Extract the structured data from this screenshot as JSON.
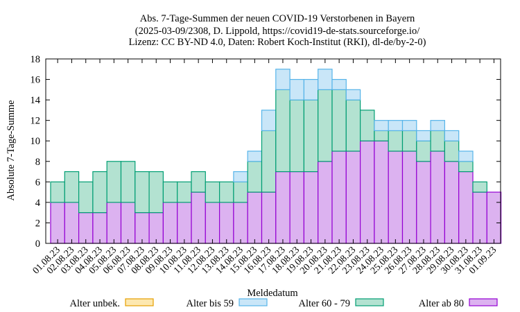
{
  "chart_data": {
    "type": "bar",
    "stacked": true,
    "title_lines": [
      "Abs. 7-Tage-Summen der neuen COVID-19 Verstorbenen in Bayern",
      "(2025-03-09/2308, D. Lippold, https://covid19-de-stats.sourceforge.io/",
      "Lizenz: CC BY-ND 4.0, Daten: Robert Koch-Institut (RKI), dl-de/by-2-0)"
    ],
    "xlabel": "Meldedatum",
    "ylabel": "Absolute 7-Tage-Summe",
    "ylim": [
      0,
      18
    ],
    "yticks": [
      0,
      2,
      4,
      6,
      8,
      10,
      12,
      14,
      16,
      18
    ],
    "grid": false,
    "legend_position": "bottom",
    "categories": [
      "01.08.23",
      "02.08.23",
      "03.08.23",
      "04.08.23",
      "05.08.23",
      "06.08.23",
      "07.08.23",
      "08.08.23",
      "09.08.23",
      "10.08.23",
      "11.08.23",
      "12.08.23",
      "13.08.23",
      "14.08.23",
      "15.08.23",
      "16.08.23",
      "17.08.23",
      "18.08.23",
      "19.08.23",
      "20.08.23",
      "21.08.23",
      "22.08.23",
      "23.08.23",
      "24.08.23",
      "25.08.23",
      "26.08.23",
      "27.08.23",
      "28.08.23",
      "29.08.23",
      "30.08.23",
      "31.08.23",
      "01.09.23"
    ],
    "series": [
      {
        "name": "Alter ab 80",
        "fill": "#dcb2f0",
        "stroke": "#9400d3",
        "values": [
          4,
          4,
          3,
          3,
          4,
          4,
          3,
          3,
          4,
          4,
          5,
          4,
          4,
          4,
          5,
          5,
          7,
          7,
          7,
          8,
          9,
          9,
          10,
          10,
          9,
          9,
          8,
          9,
          8,
          7,
          5,
          5
        ]
      },
      {
        "name": "Alter 60 - 79",
        "fill": "#b3e2d1",
        "stroke": "#009e73",
        "values": [
          2,
          3,
          3,
          4,
          4,
          4,
          4,
          4,
          2,
          2,
          2,
          2,
          2,
          2,
          3,
          6,
          8,
          7,
          7,
          7,
          6,
          5,
          3,
          1,
          2,
          2,
          2,
          2,
          2,
          1,
          1,
          0
        ]
      },
      {
        "name": "Alter bis 59",
        "fill": "#c9e6f8",
        "stroke": "#56b4e9",
        "values": [
          0,
          0,
          0,
          0,
          0,
          0,
          0,
          0,
          0,
          0,
          0,
          0,
          0,
          1,
          1,
          2,
          2,
          2,
          2,
          2,
          1,
          1,
          0,
          1,
          1,
          1,
          1,
          1,
          1,
          1,
          0,
          0
        ]
      },
      {
        "name": "Alter unbek.",
        "fill": "#fde8b0",
        "stroke": "#e69f00",
        "values": [
          0,
          0,
          0,
          0,
          0,
          0,
          0,
          0,
          0,
          0,
          0,
          0,
          0,
          0,
          0,
          0,
          0,
          0,
          0,
          0,
          0,
          0,
          0,
          0,
          0,
          0,
          0,
          0,
          0,
          0,
          0,
          0
        ]
      }
    ],
    "legend_order": [
      "Alter unbek.",
      "Alter bis 59",
      "Alter 60 - 79",
      "Alter ab 80"
    ]
  }
}
